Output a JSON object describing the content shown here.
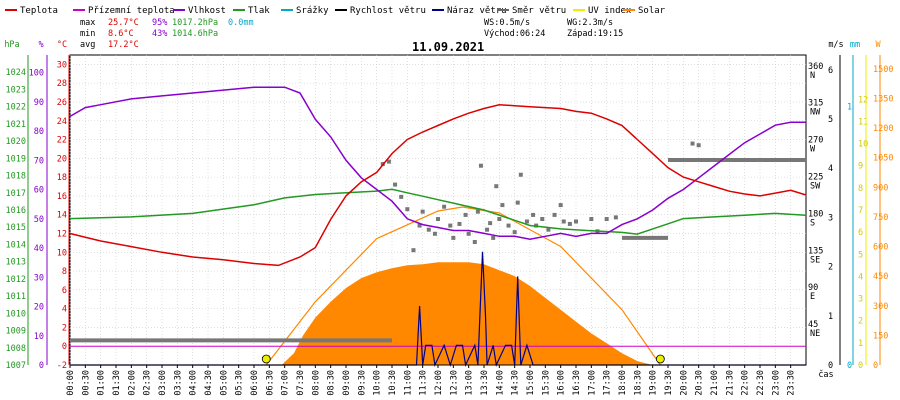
{
  "chart_data": {
    "type": "line",
    "date": "11.09.2021",
    "legend": [
      {
        "label": "Teplota",
        "color": "#dd0000"
      },
      {
        "label": "Přízemní teplota",
        "color": "#cc00cc"
      },
      {
        "label": "Vlhkost",
        "color": "#8800cc"
      },
      {
        "label": "Tlak",
        "color": "#229922"
      },
      {
        "label": "Srážky",
        "color": "#00aacc"
      },
      {
        "label": "Rychlost větru",
        "color": "#000000"
      },
      {
        "label": "Náraz větru",
        "color": "#000088"
      },
      {
        "label": "Směr větru",
        "color": "#666666"
      },
      {
        "label": "UV index",
        "color": "#eeee00"
      },
      {
        "label": "Solar",
        "color": "#ff8800"
      }
    ],
    "stats": {
      "max_label": "max",
      "max_temp": "25.7°C",
      "max_hum": "95%",
      "max_press": "1017.2hPa",
      "rain": "0.0mm",
      "min_label": "min",
      "min_temp": "8.6°C",
      "min_hum": "43%",
      "min_press": "1014.6hPa",
      "avg_label": "avg",
      "avg_temp": "17.2°C",
      "ws": "WS:0.5m/s",
      "wg": "WG:2.3m/s",
      "sunrise": "Východ:06:24",
      "sunset": "Západ:19:15"
    },
    "axes": {
      "hpa_unit": "hPa",
      "pct_unit": "%",
      "c_unit": "°C",
      "ms_unit": "m/s",
      "mm_unit": "mm",
      "w_unit": "W",
      "x_unit": "čas",
      "hpa_ticks": [
        1007,
        1008,
        1009,
        1010,
        1011,
        1012,
        1013,
        1014,
        1015,
        1016,
        1017,
        1018,
        1019,
        1020,
        1021,
        1022,
        1023,
        1024
      ],
      "pct_ticks": [
        0,
        10,
        20,
        30,
        40,
        50,
        60,
        70,
        80,
        90,
        100
      ],
      "c_ticks": [
        -2,
        0,
        2,
        4,
        6,
        8,
        10,
        12,
        14,
        16,
        18,
        20,
        22,
        24,
        26,
        28,
        30
      ],
      "dir_ticks": [
        {
          "deg": 45,
          "label": "45",
          "sub": "NE"
        },
        {
          "deg": 90,
          "label": "90",
          "sub": "E"
        },
        {
          "deg": 135,
          "label": "135",
          "sub": "SE"
        },
        {
          "deg": 180,
          "label": "180",
          "sub": "S"
        },
        {
          "deg": 225,
          "label": "225",
          "sub": "SW"
        },
        {
          "deg": 270,
          "label": "270",
          "sub": "W"
        },
        {
          "deg": 315,
          "label": "315",
          "sub": "NW"
        },
        {
          "deg": 360,
          "label": "360",
          "sub": "N"
        }
      ],
      "ms_ticks": [
        0,
        1,
        2,
        3,
        4,
        5,
        6
      ],
      "mm_ticks": [
        0,
        1
      ],
      "uv_ticks": [
        0,
        1,
        2,
        3,
        4,
        5,
        6,
        7,
        8,
        9,
        10,
        11,
        12
      ],
      "w_ticks": [
        0,
        150,
        300,
        450,
        600,
        750,
        900,
        1050,
        1200,
        1350,
        1500
      ],
      "time_ticks": [
        "00:00",
        "00:30",
        "01:00",
        "01:30",
        "02:00",
        "02:30",
        "03:00",
        "03:30",
        "04:00",
        "04:30",
        "05:00",
        "05:30",
        "06:00",
        "06:30",
        "07:00",
        "07:30",
        "08:00",
        "08:30",
        "09:00",
        "09:30",
        "10:00",
        "10:30",
        "11:00",
        "11:30",
        "12:00",
        "12:30",
        "13:00",
        "13:30",
        "14:00",
        "14:30",
        "15:00",
        "15:30",
        "16:00",
        "16:30",
        "17:00",
        "17:30",
        "18:00",
        "18:30",
        "19:00",
        "19:30",
        "20:00",
        "20:30",
        "21:00",
        "21:30",
        "22:00",
        "22:30",
        "23:00",
        "23:30"
      ]
    },
    "series": [
      {
        "name": "Teplota",
        "unit": "°C",
        "points": [
          [
            0,
            12
          ],
          [
            1,
            11.2
          ],
          [
            2,
            10.6
          ],
          [
            3,
            10
          ],
          [
            4,
            9.5
          ],
          [
            5,
            9.2
          ],
          [
            6,
            8.8
          ],
          [
            6.8,
            8.6
          ],
          [
            7.5,
            9.5
          ],
          [
            8,
            10.5
          ],
          [
            8.5,
            13.5
          ],
          [
            9,
            16
          ],
          [
            9.5,
            17.5
          ],
          [
            10,
            18.5
          ],
          [
            10.5,
            20.5
          ],
          [
            11,
            22
          ],
          [
            11.5,
            22.8
          ],
          [
            12,
            23.5
          ],
          [
            12.5,
            24.2
          ],
          [
            13,
            24.8
          ],
          [
            13.5,
            25.3
          ],
          [
            14,
            25.7
          ],
          [
            14.5,
            25.6
          ],
          [
            15,
            25.5
          ],
          [
            15.5,
            25.4
          ],
          [
            16,
            25.3
          ],
          [
            16.5,
            25
          ],
          [
            17,
            24.8
          ],
          [
            17.5,
            24.2
          ],
          [
            18,
            23.5
          ],
          [
            18.5,
            22
          ],
          [
            19,
            20.5
          ],
          [
            19.5,
            19
          ],
          [
            20,
            18
          ],
          [
            20.5,
            17.5
          ],
          [
            21,
            17
          ],
          [
            21.5,
            16.5
          ],
          [
            22,
            16.2
          ],
          [
            22.5,
            16
          ],
          [
            23,
            16.3
          ],
          [
            23.5,
            16.6
          ],
          [
            24,
            16.1
          ]
        ]
      },
      {
        "name": "Vlhkost",
        "unit": "%",
        "points": [
          [
            0,
            85
          ],
          [
            0.5,
            88
          ],
          [
            1,
            89
          ],
          [
            2,
            91
          ],
          [
            3,
            92
          ],
          [
            4,
            93
          ],
          [
            5,
            94
          ],
          [
            6,
            95
          ],
          [
            7,
            95
          ],
          [
            7.5,
            93
          ],
          [
            8,
            84
          ],
          [
            8.5,
            78
          ],
          [
            9,
            70
          ],
          [
            9.5,
            64
          ],
          [
            10,
            60
          ],
          [
            10.5,
            56
          ],
          [
            11,
            50
          ],
          [
            11.5,
            48
          ],
          [
            12,
            47
          ],
          [
            12.5,
            46
          ],
          [
            13,
            46
          ],
          [
            13.5,
            45
          ],
          [
            14,
            44
          ],
          [
            14.5,
            44
          ],
          [
            15,
            43
          ],
          [
            15.5,
            44
          ],
          [
            16,
            45
          ],
          [
            16.5,
            44
          ],
          [
            17,
            45
          ],
          [
            17.5,
            45
          ],
          [
            18,
            48
          ],
          [
            18.5,
            50
          ],
          [
            19,
            53
          ],
          [
            19.5,
            57
          ],
          [
            20,
            60
          ],
          [
            20.5,
            64
          ],
          [
            21,
            68
          ],
          [
            21.5,
            72
          ],
          [
            22,
            76
          ],
          [
            22.5,
            79
          ],
          [
            23,
            82
          ],
          [
            23.5,
            83
          ],
          [
            24,
            83
          ]
        ]
      },
      {
        "name": "Tlak",
        "unit": "hPa",
        "points": [
          [
            0,
            1015.5
          ],
          [
            2,
            1015.6
          ],
          [
            4,
            1015.8
          ],
          [
            6,
            1016.3
          ],
          [
            7,
            1016.7
          ],
          [
            8,
            1016.9
          ],
          [
            9,
            1017.0
          ],
          [
            10,
            1017.1
          ],
          [
            10.5,
            1017.2
          ],
          [
            11,
            1017.0
          ],
          [
            11.5,
            1016.8
          ],
          [
            12,
            1016.6
          ],
          [
            12.5,
            1016.4
          ],
          [
            13,
            1016.2
          ],
          [
            13.5,
            1016
          ],
          [
            14,
            1015.7
          ],
          [
            14.5,
            1015.4
          ],
          [
            15,
            1015.1
          ],
          [
            16,
            1014.9
          ],
          [
            17,
            1014.8
          ],
          [
            18,
            1014.7
          ],
          [
            18.5,
            1014.6
          ],
          [
            19,
            1014.9
          ],
          [
            19.5,
            1015.2
          ],
          [
            20,
            1015.5
          ],
          [
            21,
            1015.6
          ],
          [
            22,
            1015.7
          ],
          [
            23,
            1015.8
          ],
          [
            24,
            1015.7
          ]
        ]
      },
      {
        "name": "Přízemní teplota",
        "unit": "°C",
        "points": [
          [
            0,
            0
          ],
          [
            24,
            0
          ]
        ]
      },
      {
        "name": "Rychlost větru",
        "unit": "m/s",
        "points": [
          [
            0,
            0
          ],
          [
            24,
            0
          ]
        ]
      },
      {
        "name": "Náraz větru",
        "unit": "m/s",
        "points": [
          [
            0,
            0
          ],
          [
            11.3,
            0
          ],
          [
            11.4,
            1.2
          ],
          [
            11.5,
            0
          ],
          [
            11.6,
            0.4
          ],
          [
            11.8,
            0.4
          ],
          [
            11.9,
            0
          ],
          [
            12.2,
            0.4
          ],
          [
            12.4,
            0
          ],
          [
            12.6,
            0.4
          ],
          [
            12.8,
            0.4
          ],
          [
            12.9,
            0
          ],
          [
            13.2,
            0.4
          ],
          [
            13.3,
            0
          ],
          [
            13.45,
            2.3
          ],
          [
            13.55,
            1
          ],
          [
            13.6,
            0
          ],
          [
            13.8,
            0.4
          ],
          [
            13.9,
            0
          ],
          [
            14.2,
            0.4
          ],
          [
            14.4,
            0.4
          ],
          [
            14.5,
            0
          ],
          [
            14.6,
            1.8
          ],
          [
            14.7,
            0
          ],
          [
            14.9,
            0.4
          ],
          [
            15.1,
            0
          ],
          [
            24,
            0
          ]
        ]
      },
      {
        "name": "Solar",
        "unit": "W",
        "points": [
          [
            6.9,
            0
          ],
          [
            7.3,
            60
          ],
          [
            7.6,
            150
          ],
          [
            8,
            240
          ],
          [
            8.5,
            320
          ],
          [
            9,
            390
          ],
          [
            9.5,
            440
          ],
          [
            10,
            470
          ],
          [
            10.5,
            490
          ],
          [
            11,
            505
          ],
          [
            11.5,
            510
          ],
          [
            12,
            520
          ],
          [
            12.5,
            520
          ],
          [
            13,
            520
          ],
          [
            13.5,
            510
          ],
          [
            14,
            480
          ],
          [
            14.5,
            450
          ],
          [
            15,
            400
          ],
          [
            15.5,
            340
          ],
          [
            16,
            280
          ],
          [
            16.5,
            220
          ],
          [
            17,
            160
          ],
          [
            17.5,
            110
          ],
          [
            18,
            60
          ],
          [
            18.5,
            20
          ],
          [
            19,
            0
          ]
        ]
      },
      {
        "name": "Solar clear-sky",
        "unit": "W",
        "points": [
          [
            6.4,
            0
          ],
          [
            8,
            320
          ],
          [
            10,
            640
          ],
          [
            12,
            780
          ],
          [
            12.8,
            800
          ],
          [
            14,
            770
          ],
          [
            16,
            600
          ],
          [
            18,
            280
          ],
          [
            19.25,
            0
          ]
        ]
      }
    ],
    "wind_dir_segments": [
      {
        "x0": 0,
        "x1": 10.5,
        "deg": 30
      },
      {
        "x0": 18.0,
        "x1": 19.5,
        "deg": 155
      },
      {
        "x0": 19.5,
        "x1": 24,
        "deg": 250
      }
    ],
    "wind_dir_points": [
      [
        10.2,
        245
      ],
      [
        10.4,
        248
      ],
      [
        10.6,
        220
      ],
      [
        10.8,
        205
      ],
      [
        11,
        190
      ],
      [
        11.2,
        140
      ],
      [
        11.4,
        170
      ],
      [
        11.5,
        187
      ],
      [
        11.7,
        165
      ],
      [
        11.9,
        160
      ],
      [
        12.0,
        178
      ],
      [
        12.2,
        193
      ],
      [
        12.4,
        170
      ],
      [
        12.5,
        155
      ],
      [
        12.7,
        172
      ],
      [
        12.9,
        183
      ],
      [
        13,
        160
      ],
      [
        13.2,
        150
      ],
      [
        13.3,
        187
      ],
      [
        13.4,
        243
      ],
      [
        13.6,
        165
      ],
      [
        13.7,
        173
      ],
      [
        13.8,
        155
      ],
      [
        13.9,
        218
      ],
      [
        14,
        178
      ],
      [
        14.1,
        195
      ],
      [
        14.3,
        170
      ],
      [
        14.5,
        162
      ],
      [
        14.6,
        198
      ],
      [
        14.7,
        232
      ],
      [
        14.9,
        175
      ],
      [
        15.1,
        183
      ],
      [
        15.2,
        170
      ],
      [
        15.4,
        178
      ],
      [
        15.6,
        165
      ],
      [
        15.8,
        183
      ],
      [
        16.0,
        195
      ],
      [
        16.1,
        175
      ],
      [
        16.3,
        172
      ],
      [
        16.5,
        175
      ],
      [
        17.0,
        178
      ],
      [
        17.2,
        163
      ],
      [
        17.5,
        178
      ],
      [
        17.8,
        180
      ],
      [
        20.3,
        270
      ],
      [
        20.5,
        268
      ]
    ],
    "sun_markers": [
      {
        "hour": 6.4
      },
      {
        "hour": 19.25
      }
    ]
  }
}
